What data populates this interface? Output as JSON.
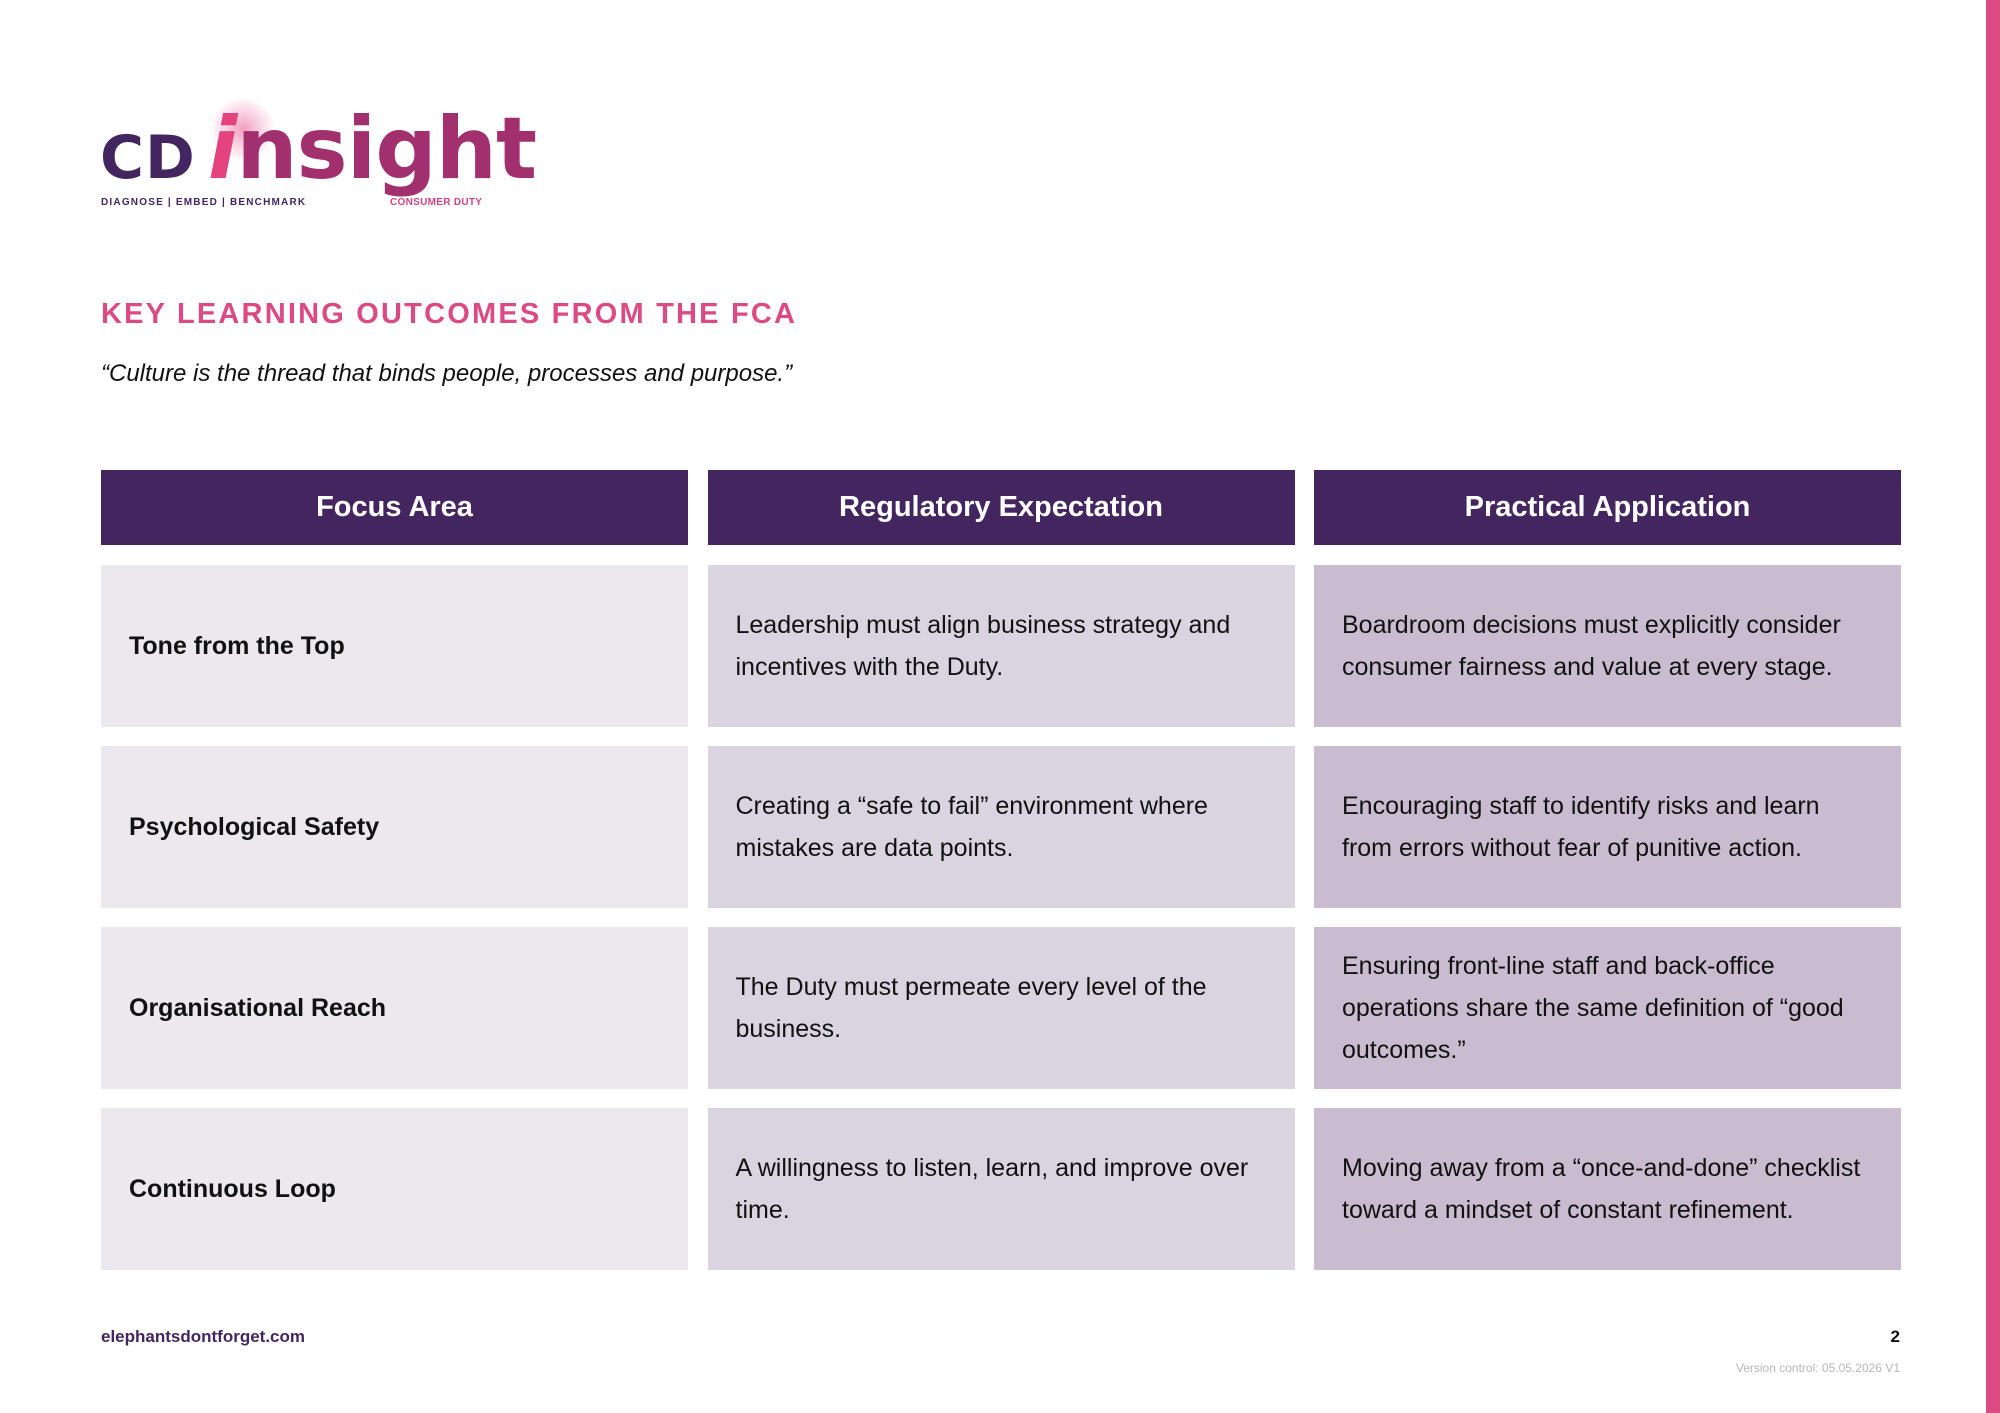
{
  "brand": {
    "logo_cd": "CD",
    "logo_i": "i",
    "logo_rest": "nsight",
    "tagline_left": "DIAGNOSE | EMBED | BENCHMARK",
    "tagline_right": "CONSUMER DUTY",
    "accent_color": "#dc4a84",
    "primary_color": "#43255f"
  },
  "page": {
    "title": "KEY LEARNING OUTCOMES FROM THE FCA",
    "quote": "“Culture is the thread that binds people, processes and purpose.”"
  },
  "table": {
    "headers": [
      "Focus Area",
      "Regulatory Expectation",
      "Practical Application"
    ],
    "rows": [
      {
        "focus": "Tone from the Top",
        "expectation": "Leadership must align business strategy and incentives with the Duty.",
        "application": "Boardroom decisions must explicitly consider consumer fairness and value at every stage."
      },
      {
        "focus": "Psychological Safety",
        "expectation": "Creating a “safe to fail” environment where mistakes are data points.",
        "application": "Encouraging staff to identify risks and learn from errors without fear of punitive action."
      },
      {
        "focus": "Organisational Reach",
        "expectation": "The Duty must permeate every level of the business.",
        "application": "Ensuring front-line staff and back-office operations share the same definition of “good outcomes.”"
      },
      {
        "focus": "Continuous Loop",
        "expectation": "A willingness to listen, learn, and improve over time.",
        "application": "Moving away from a “once-and-done” checklist toward a mindset of constant refinement."
      }
    ],
    "colors": {
      "header_bg": "#43255f",
      "col1_bg": "#ebe9ee",
      "col2_bg": "#dad3e0",
      "col3_bg": "#c9bcd0"
    }
  },
  "footer": {
    "url": "elephantsdontforget.com",
    "page_number": "2",
    "version": "Version control: 05.05.2026 V1"
  }
}
